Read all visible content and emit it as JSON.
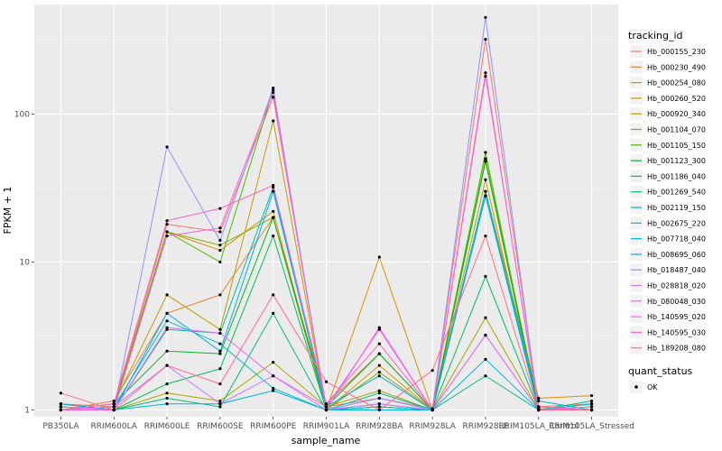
{
  "chart_data": {
    "type": "line",
    "xlabel": "sample_name",
    "ylabel": "FPKM + 1",
    "y_scale": "log10",
    "ylim": [
      0.9,
      550
    ],
    "y_ticks": [
      1,
      10,
      100
    ],
    "y_tick_labels": [
      "1",
      "10",
      "100"
    ],
    "grid": true,
    "legend_position": "right",
    "categories": [
      "PB350LA",
      "RRIM600LA",
      "RRIM600LE",
      "RRIM600SE",
      "RRIM600PE",
      "RRIM901LA",
      "RRIM928BA",
      "RRIM928LA",
      "RRIM928LE",
      "RRIM105LA_Control",
      "RRIM105LA_Stressed"
    ],
    "legend_title": "tracking_id",
    "series": [
      {
        "name": "Hb_000155_230",
        "color": "#F8766D",
        "values": [
          1.1,
          1.05,
          18,
          16,
          130,
          1.05,
          1.2,
          1.02,
          320,
          1.05,
          1.1
        ]
      },
      {
        "name": "Hb_000230_490",
        "color": "#EB8335",
        "values": [
          1.0,
          1.15,
          4.5,
          6.0,
          20,
          1.1,
          2.4,
          1.0,
          48,
          1.02,
          1.0
        ]
      },
      {
        "name": "Hb_000254_080",
        "color": "#DA8F00",
        "values": [
          1.05,
          1.0,
          16,
          12,
          22,
          1.0,
          10.8,
          1.0,
          30,
          1.2,
          1.25
        ]
      },
      {
        "name": "Hb_000260_520",
        "color": "#C49A00",
        "values": [
          1.0,
          1.1,
          6.0,
          3.5,
          90,
          1.0,
          2.0,
          1.0,
          36,
          1.0,
          1.05
        ]
      },
      {
        "name": "Hb_000920_340",
        "color": "#A9A400",
        "values": [
          1.1,
          1.0,
          1.3,
          1.15,
          2.1,
          1.05,
          1.35,
          1.0,
          4.2,
          1.0,
          1.0
        ]
      },
      {
        "name": "Hb_001104_070",
        "color": "#86AC00",
        "values": [
          1.0,
          1.05,
          16,
          13,
          20,
          1.0,
          1.8,
          1.0,
          50,
          1.05,
          1.0
        ]
      },
      {
        "name": "Hb_001105_150",
        "color": "#53B400",
        "values": [
          1.05,
          1.0,
          16,
          10,
          145,
          1.0,
          1.05,
          1.0,
          55,
          1.0,
          1.1
        ]
      },
      {
        "name": "Hb_001123_300",
        "color": "#00B81F",
        "values": [
          1.0,
          1.1,
          2.5,
          2.4,
          20,
          1.05,
          2.4,
          1.0,
          48,
          1.0,
          1.0
        ]
      },
      {
        "name": "Hb_001186_040",
        "color": "#00BC59",
        "values": [
          1.1,
          1.0,
          1.5,
          1.9,
          15,
          1.0,
          1.1,
          1.0,
          8.0,
          1.0,
          1.0
        ]
      },
      {
        "name": "Hb_001269_540",
        "color": "#00BF7D",
        "values": [
          1.0,
          1.0,
          1.2,
          1.05,
          4.5,
          1.0,
          1.05,
          1.0,
          1.7,
          1.0,
          1.15
        ]
      },
      {
        "name": "Hb_002119_150",
        "color": "#00C0A0",
        "values": [
          1.05,
          1.0,
          3.5,
          3.3,
          32,
          1.0,
          1.3,
          1.0,
          30,
          1.0,
          1.0
        ]
      },
      {
        "name": "Hb_002675_220",
        "color": "#00BEC1",
        "values": [
          1.0,
          1.05,
          4.0,
          2.8,
          1.4,
          1.0,
          1.05,
          1.0,
          28,
          1.15,
          1.0
        ]
      },
      {
        "name": "Hb_007718_040",
        "color": "#00B6E0",
        "values": [
          1.0,
          1.0,
          1.1,
          1.1,
          1.35,
          1.0,
          1.0,
          1.0,
          2.2,
          1.0,
          1.1
        ]
      },
      {
        "name": "Hb_008695_060",
        "color": "#00A8FF",
        "values": [
          1.1,
          1.0,
          4.5,
          2.5,
          30,
          1.05,
          1.7,
          1.0,
          28,
          1.0,
          1.0
        ]
      },
      {
        "name": "Hb_018487_040",
        "color": "#8F91FF",
        "values": [
          1.0,
          1.0,
          60,
          14,
          150,
          1.0,
          1.2,
          1.0,
          450,
          1.0,
          1.0
        ]
      },
      {
        "name": "Hb_028818_020",
        "color": "#C77CFF",
        "values": [
          1.0,
          1.05,
          2.0,
          1.1,
          1.7,
          1.0,
          1.1,
          1.0,
          3.2,
          1.0,
          1.05
        ]
      },
      {
        "name": "Hb_080048_030",
        "color": "#E76BF3",
        "values": [
          1.05,
          1.0,
          3.6,
          3.3,
          1.7,
          1.05,
          3.5,
          1.0,
          3.2,
          1.0,
          1.0
        ]
      },
      {
        "name": "Hb_140595_020",
        "color": "#FA62DB",
        "values": [
          1.0,
          1.0,
          15,
          17,
          140,
          1.0,
          3.6,
          1.0,
          180,
          1.05,
          1.0
        ]
      },
      {
        "name": "Hb_140595_030",
        "color": "#FF61C3",
        "values": [
          1.0,
          1.1,
          19,
          23,
          33,
          1.1,
          2.8,
          1.0,
          190,
          1.0,
          1.0
        ]
      },
      {
        "name": "Hb_189208_080",
        "color": "#FF6C91",
        "values": [
          1.3,
          1.0,
          2.0,
          1.5,
          6.0,
          1.55,
          1.0,
          1.85,
          15,
          1.0,
          1.0
        ]
      }
    ],
    "quant_status_legend": {
      "title": "quant_status",
      "label": "OK"
    }
  }
}
